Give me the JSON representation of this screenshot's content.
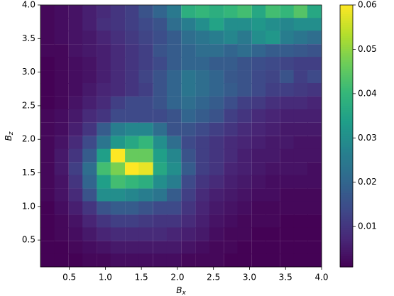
{
  "chart_data": {
    "type": "heatmap",
    "xlabel": {
      "base": "B",
      "sub": "x"
    },
    "ylabel": {
      "base": "B",
      "sub": "z"
    },
    "x": [
      0.2,
      0.39,
      0.59,
      0.78,
      0.98,
      1.17,
      1.37,
      1.56,
      1.76,
      1.95,
      2.15,
      2.35,
      2.54,
      2.74,
      2.93,
      3.13,
      3.32,
      3.52,
      3.71,
      3.9
    ],
    "y": [
      3.9,
      3.71,
      3.52,
      3.32,
      3.13,
      2.93,
      2.74,
      2.54,
      2.35,
      2.15,
      1.95,
      1.76,
      1.56,
      1.37,
      1.17,
      0.98,
      0.78,
      0.59,
      0.39,
      0.2
    ],
    "values": [
      [
        0.002,
        0.003,
        0.004,
        0.006,
        0.008,
        0.01,
        0.012,
        0.016,
        0.02,
        0.025,
        0.038,
        0.04,
        0.038,
        0.04,
        0.042,
        0.036,
        0.042,
        0.04,
        0.044,
        0.036
      ],
      [
        0.002,
        0.003,
        0.004,
        0.006,
        0.009,
        0.01,
        0.012,
        0.014,
        0.016,
        0.022,
        0.026,
        0.03,
        0.035,
        0.03,
        0.03,
        0.032,
        0.03,
        0.028,
        0.03,
        0.03
      ],
      [
        0.002,
        0.003,
        0.004,
        0.005,
        0.007,
        0.009,
        0.011,
        0.013,
        0.015,
        0.018,
        0.022,
        0.024,
        0.026,
        0.028,
        0.025,
        0.03,
        0.032,
        0.026,
        0.024,
        0.022
      ],
      [
        0.002,
        0.002,
        0.004,
        0.005,
        0.006,
        0.008,
        0.01,
        0.012,
        0.016,
        0.018,
        0.02,
        0.022,
        0.022,
        0.02,
        0.022,
        0.02,
        0.018,
        0.018,
        0.017,
        0.016
      ],
      [
        0.001,
        0.002,
        0.003,
        0.004,
        0.006,
        0.008,
        0.01,
        0.012,
        0.014,
        0.018,
        0.02,
        0.02,
        0.018,
        0.018,
        0.016,
        0.015,
        0.014,
        0.013,
        0.012,
        0.012
      ],
      [
        0.001,
        0.002,
        0.003,
        0.004,
        0.006,
        0.008,
        0.01,
        0.013,
        0.016,
        0.02,
        0.024,
        0.022,
        0.02,
        0.017,
        0.016,
        0.014,
        0.013,
        0.016,
        0.012,
        0.014
      ],
      [
        0.001,
        0.002,
        0.003,
        0.005,
        0.007,
        0.008,
        0.01,
        0.012,
        0.016,
        0.02,
        0.024,
        0.022,
        0.02,
        0.018,
        0.016,
        0.014,
        0.012,
        0.012,
        0.011,
        0.01
      ],
      [
        0.001,
        0.002,
        0.004,
        0.006,
        0.008,
        0.012,
        0.014,
        0.014,
        0.016,
        0.02,
        0.022,
        0.02,
        0.018,
        0.015,
        0.012,
        0.011,
        0.009,
        0.008,
        0.008,
        0.007
      ],
      [
        0.002,
        0.003,
        0.005,
        0.008,
        0.01,
        0.014,
        0.014,
        0.014,
        0.014,
        0.016,
        0.02,
        0.018,
        0.016,
        0.012,
        0.01,
        0.008,
        0.007,
        0.006,
        0.006,
        0.006
      ],
      [
        0.002,
        0.003,
        0.006,
        0.01,
        0.018,
        0.026,
        0.028,
        0.028,
        0.022,
        0.016,
        0.016,
        0.014,
        0.012,
        0.01,
        0.008,
        0.007,
        0.006,
        0.005,
        0.005,
        0.005
      ],
      [
        0.002,
        0.004,
        0.008,
        0.014,
        0.024,
        0.032,
        0.036,
        0.04,
        0.03,
        0.022,
        0.014,
        0.012,
        0.01,
        0.008,
        0.007,
        0.006,
        0.005,
        0.005,
        0.004,
        0.004
      ],
      [
        0.002,
        0.005,
        0.01,
        0.018,
        0.034,
        0.06,
        0.046,
        0.046,
        0.034,
        0.028,
        0.016,
        0.012,
        0.01,
        0.008,
        0.006,
        0.005,
        0.005,
        0.004,
        0.004,
        0.004
      ],
      [
        0.002,
        0.005,
        0.012,
        0.022,
        0.042,
        0.048,
        0.06,
        0.058,
        0.036,
        0.03,
        0.018,
        0.012,
        0.01,
        0.007,
        0.006,
        0.005,
        0.004,
        0.004,
        0.004,
        0.003
      ],
      [
        0.002,
        0.004,
        0.01,
        0.02,
        0.034,
        0.042,
        0.04,
        0.038,
        0.03,
        0.026,
        0.014,
        0.01,
        0.008,
        0.006,
        0.005,
        0.004,
        0.003,
        0.003,
        0.003,
        0.003
      ],
      [
        0.002,
        0.004,
        0.008,
        0.016,
        0.03,
        0.03,
        0.028,
        0.026,
        0.024,
        0.018,
        0.012,
        0.008,
        0.006,
        0.005,
        0.004,
        0.003,
        0.003,
        0.002,
        0.002,
        0.002
      ],
      [
        0.001,
        0.003,
        0.006,
        0.01,
        0.016,
        0.018,
        0.018,
        0.016,
        0.014,
        0.014,
        0.01,
        0.007,
        0.005,
        0.004,
        0.003,
        0.002,
        0.002,
        0.002,
        0.002,
        0.002
      ],
      [
        0.001,
        0.002,
        0.004,
        0.007,
        0.01,
        0.012,
        0.012,
        0.011,
        0.01,
        0.01,
        0.008,
        0.006,
        0.004,
        0.003,
        0.002,
        0.002,
        0.002,
        0.001,
        0.001,
        0.001
      ],
      [
        0.001,
        0.002,
        0.003,
        0.005,
        0.007,
        0.008,
        0.008,
        0.008,
        0.008,
        0.007,
        0.006,
        0.005,
        0.003,
        0.002,
        0.002,
        0.001,
        0.001,
        0.001,
        0.001,
        0.001
      ],
      [
        0.001,
        0.001,
        0.002,
        0.003,
        0.004,
        0.005,
        0.005,
        0.005,
        0.005,
        0.005,
        0.004,
        0.003,
        0.002,
        0.002,
        0.001,
        0.001,
        0.001,
        0.001,
        0.001,
        0.001
      ],
      [
        0.001,
        0.001,
        0.001,
        0.002,
        0.002,
        0.003,
        0.003,
        0.003,
        0.003,
        0.003,
        0.002,
        0.002,
        0.002,
        0.001,
        0.001,
        0.001,
        0.001,
        0.001,
        0.001,
        0.001
      ]
    ],
    "xlim": [
      0.1,
      4.0
    ],
    "ylim": [
      0.1,
      4.0
    ],
    "xticks": [
      0.5,
      {
        "value": 1,
        "label": "1.0"
      },
      1.5,
      {
        "value": 2,
        "label": "2.0"
      },
      2.5,
      {
        "value": 3,
        "label": "3.0"
      },
      3.5,
      {
        "value": 4,
        "label": "4.0"
      }
    ],
    "yticks": [
      0.5,
      {
        "value": 1,
        "label": "1.0"
      },
      1.5,
      {
        "value": 2,
        "label": "2.0"
      },
      2.5,
      {
        "value": 3,
        "label": "3.0"
      },
      3.5,
      {
        "value": 4,
        "label": "4.0"
      }
    ],
    "colormap": "viridis",
    "clim": [
      0.0009,
      0.06
    ],
    "cticks": [
      0.01,
      0.02,
      0.03,
      0.04,
      0.05,
      0.06
    ]
  }
}
